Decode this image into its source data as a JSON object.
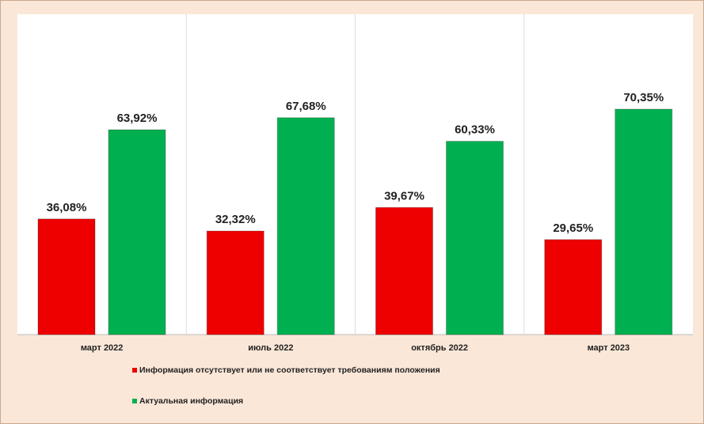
{
  "chart_data": {
    "type": "bar",
    "categories": [
      "март 2022",
      "июль 2022",
      "октябрь 2022",
      "март 2023"
    ],
    "series": [
      {
        "name": "Информация отсутствует или не соответствует требованиям положения",
        "color": "#ee0000",
        "values": [
          36.08,
          32.32,
          39.67,
          29.65
        ],
        "value_labels": [
          "36,08%",
          "32,32%",
          "39,67%",
          "29,65%"
        ]
      },
      {
        "name": "Актуальная информация",
        "color": "#00b050",
        "values": [
          63.92,
          67.68,
          60.33,
          70.35
        ],
        "value_labels": [
          "63,92%",
          "67,68%",
          "60,33%",
          "70,35%"
        ]
      }
    ]
  }
}
